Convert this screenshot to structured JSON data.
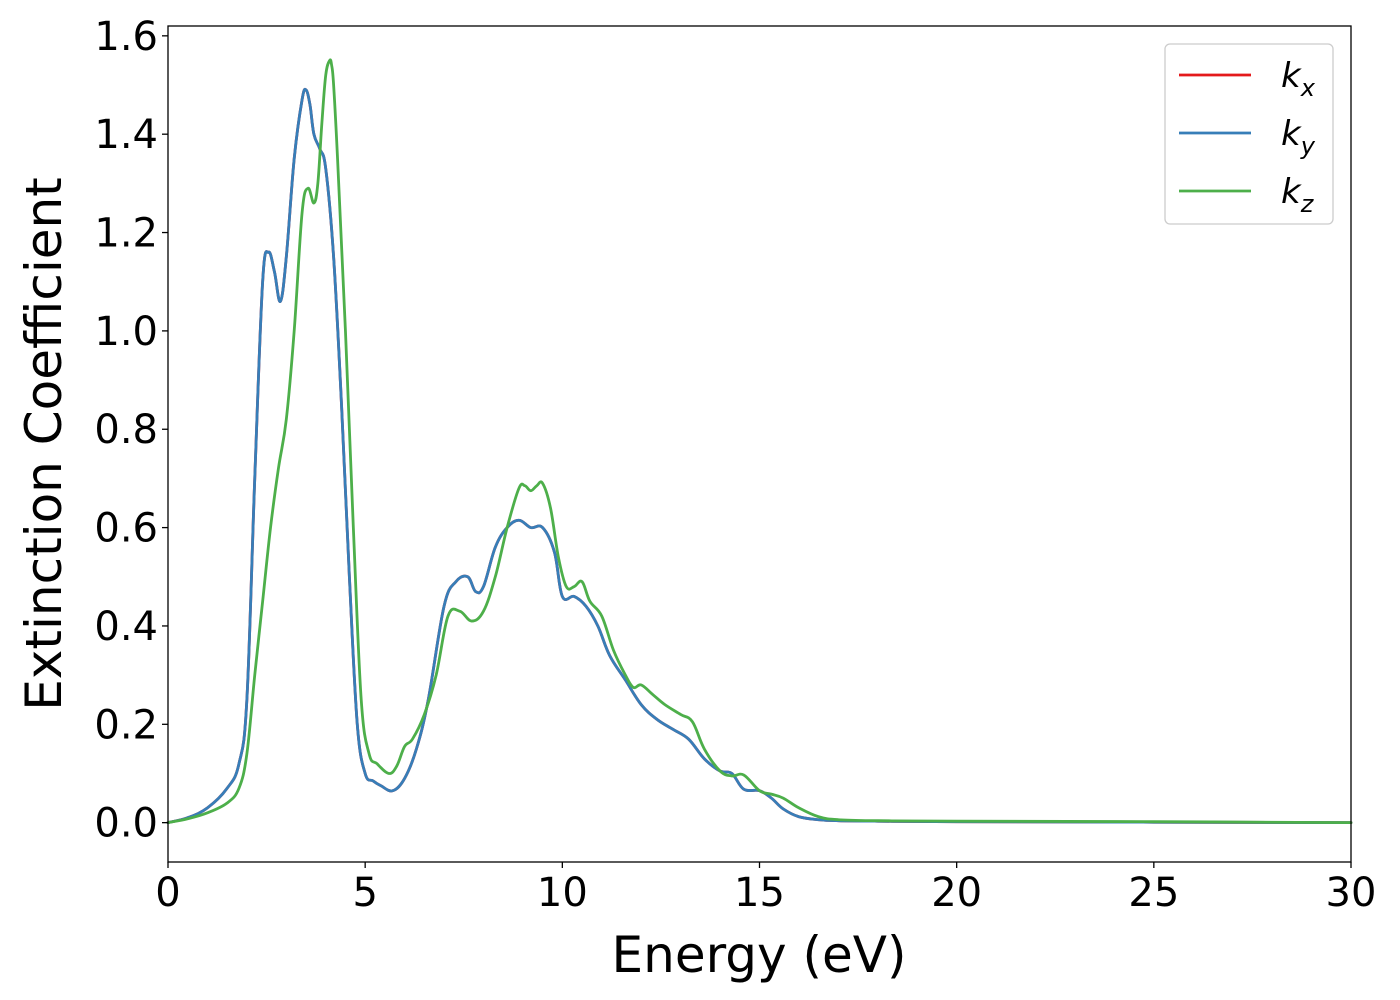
{
  "chart_data": {
    "type": "line",
    "title": "",
    "xlabel": "Energy (eV)",
    "ylabel": "Extinction Coefficient",
    "xlim": [
      0,
      30
    ],
    "ylim": [
      -0.08,
      1.62
    ],
    "xticks": [
      0,
      5,
      10,
      15,
      20,
      25,
      30
    ],
    "xtick_labels": [
      "0",
      "5",
      "10",
      "15",
      "20",
      "25",
      "30"
    ],
    "yticks": [
      0.0,
      0.2,
      0.4,
      0.6,
      0.8,
      1.0,
      1.2,
      1.4,
      1.6
    ],
    "ytick_labels": [
      "0.0",
      "0.2",
      "0.4",
      "0.6",
      "0.8",
      "1.0",
      "1.2",
      "1.4",
      "1.6"
    ],
    "grid": false,
    "legend_position": "top-right",
    "series": [
      {
        "name": "k_x",
        "legend_base": "k",
        "legend_sub": "x",
        "color": "#e41a1c",
        "x": [
          0,
          0.5,
          1,
          1.5,
          1.8,
          2,
          2.2,
          2.4,
          2.55,
          2.7,
          2.85,
          3,
          3.2,
          3.4,
          3.5,
          3.6,
          3.7,
          3.85,
          4,
          4.2,
          4.4,
          4.6,
          4.8,
          5,
          5.2,
          5.4,
          5.7,
          6,
          6.3,
          6.6,
          7,
          7.3,
          7.6,
          7.8,
          8,
          8.3,
          8.6,
          8.9,
          9.2,
          9.5,
          9.8,
          10,
          10.3,
          10.6,
          10.9,
          11.2,
          11.6,
          12,
          12.4,
          12.8,
          13.2,
          13.6,
          14,
          14.3,
          14.6,
          15,
          15.3,
          15.6,
          16,
          16.5,
          17,
          18,
          20,
          25,
          30
        ],
        "y": [
          0,
          0.01,
          0.03,
          0.07,
          0.12,
          0.25,
          0.7,
          1.1,
          1.16,
          1.12,
          1.06,
          1.15,
          1.35,
          1.47,
          1.49,
          1.46,
          1.4,
          1.37,
          1.33,
          1.15,
          0.85,
          0.5,
          0.2,
          0.1,
          0.085,
          0.075,
          0.065,
          0.09,
          0.15,
          0.25,
          0.44,
          0.49,
          0.5,
          0.47,
          0.48,
          0.56,
          0.6,
          0.615,
          0.6,
          0.6,
          0.55,
          0.46,
          0.46,
          0.44,
          0.4,
          0.34,
          0.29,
          0.24,
          0.21,
          0.19,
          0.17,
          0.13,
          0.105,
          0.1,
          0.068,
          0.065,
          0.05,
          0.028,
          0.012,
          0.006,
          0.004,
          0.003,
          0.002,
          0.001,
          0
        ]
      },
      {
        "name": "k_y",
        "legend_base": "k",
        "legend_sub": "y",
        "color": "#377eb8",
        "x": [
          0,
          0.5,
          1,
          1.5,
          1.8,
          2,
          2.2,
          2.4,
          2.55,
          2.7,
          2.85,
          3,
          3.2,
          3.4,
          3.5,
          3.6,
          3.7,
          3.85,
          4,
          4.2,
          4.4,
          4.6,
          4.8,
          5,
          5.2,
          5.4,
          5.7,
          6,
          6.3,
          6.6,
          7,
          7.3,
          7.6,
          7.8,
          8,
          8.3,
          8.6,
          8.9,
          9.2,
          9.5,
          9.8,
          10,
          10.3,
          10.6,
          10.9,
          11.2,
          11.6,
          12,
          12.4,
          12.8,
          13.2,
          13.6,
          14,
          14.3,
          14.6,
          15,
          15.3,
          15.6,
          16,
          16.5,
          17,
          18,
          20,
          25,
          30
        ],
        "y": [
          0,
          0.01,
          0.03,
          0.07,
          0.12,
          0.25,
          0.7,
          1.1,
          1.16,
          1.12,
          1.06,
          1.15,
          1.35,
          1.47,
          1.49,
          1.46,
          1.4,
          1.37,
          1.33,
          1.15,
          0.85,
          0.5,
          0.2,
          0.1,
          0.085,
          0.075,
          0.065,
          0.09,
          0.15,
          0.25,
          0.44,
          0.49,
          0.5,
          0.47,
          0.48,
          0.56,
          0.6,
          0.615,
          0.6,
          0.6,
          0.55,
          0.46,
          0.46,
          0.44,
          0.4,
          0.34,
          0.29,
          0.24,
          0.21,
          0.19,
          0.17,
          0.13,
          0.105,
          0.1,
          0.068,
          0.065,
          0.05,
          0.028,
          0.012,
          0.006,
          0.004,
          0.003,
          0.002,
          0.001,
          0
        ]
      },
      {
        "name": "k_z",
        "legend_base": "k",
        "legend_sub": "z",
        "color": "#4daf4a",
        "x": [
          0,
          0.5,
          1,
          1.5,
          1.8,
          2,
          2.2,
          2.4,
          2.6,
          2.8,
          3,
          3.2,
          3.4,
          3.55,
          3.7,
          3.8,
          3.9,
          4,
          4.1,
          4.15,
          4.2,
          4.3,
          4.5,
          4.7,
          4.9,
          5.1,
          5.3,
          5.6,
          5.8,
          6,
          6.2,
          6.5,
          6.8,
          7.1,
          7.4,
          7.7,
          8,
          8.3,
          8.6,
          8.9,
          9.05,
          9.2,
          9.35,
          9.5,
          9.7,
          9.9,
          10.1,
          10.3,
          10.5,
          10.7,
          11,
          11.3,
          11.6,
          11.8,
          12,
          12.3,
          12.6,
          13,
          13.3,
          13.6,
          14,
          14.3,
          14.6,
          15,
          15.3,
          15.6,
          16,
          16.5,
          17,
          18,
          20,
          25,
          30
        ],
        "y": [
          0,
          0.008,
          0.02,
          0.04,
          0.07,
          0.14,
          0.3,
          0.45,
          0.6,
          0.72,
          0.82,
          1.0,
          1.24,
          1.29,
          1.26,
          1.3,
          1.42,
          1.52,
          1.55,
          1.54,
          1.5,
          1.35,
          1.0,
          0.6,
          0.25,
          0.14,
          0.12,
          0.1,
          0.115,
          0.155,
          0.17,
          0.22,
          0.3,
          0.42,
          0.43,
          0.41,
          0.43,
          0.5,
          0.6,
          0.68,
          0.685,
          0.675,
          0.685,
          0.69,
          0.64,
          0.54,
          0.48,
          0.48,
          0.49,
          0.45,
          0.42,
          0.35,
          0.3,
          0.275,
          0.28,
          0.26,
          0.24,
          0.22,
          0.205,
          0.15,
          0.105,
          0.095,
          0.097,
          0.065,
          0.058,
          0.05,
          0.03,
          0.012,
          0.006,
          0.004,
          0.003,
          0.002,
          0
        ]
      }
    ]
  }
}
